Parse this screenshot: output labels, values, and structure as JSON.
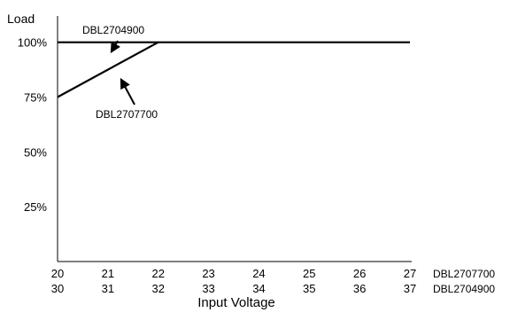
{
  "chart_data": {
    "type": "line",
    "ylabel": "Load",
    "xlabel": "Input Voltage",
    "y_ticks": [
      {
        "value": 100,
        "label": "100%"
      },
      {
        "value": 75,
        "label": "75%"
      },
      {
        "value": 50,
        "label": "50%"
      },
      {
        "value": 25,
        "label": "25%"
      }
    ],
    "ylim": [
      0,
      112
    ],
    "xlim": [
      20,
      27
    ],
    "x_tick_rows": [
      {
        "name": "DBL2707700",
        "labels": [
          "20",
          "21",
          "22",
          "23",
          "24",
          "25",
          "26",
          "27"
        ]
      },
      {
        "name": "DBL2704900",
        "labels": [
          "30",
          "31",
          "32",
          "33",
          "34",
          "35",
          "36",
          "37"
        ]
      }
    ],
    "series": [
      {
        "name": "DBL2704900",
        "points": [
          [
            20,
            100
          ],
          [
            27,
            100
          ]
        ]
      },
      {
        "name": "DBL2707700",
        "points": [
          [
            20,
            75
          ],
          [
            22,
            100
          ]
        ]
      }
    ],
    "annotations": [
      {
        "text": "DBL2704900",
        "target_series": "DBL2704900"
      },
      {
        "text": "DBL2707700",
        "target_series": "DBL2707700"
      }
    ],
    "grid": false,
    "colors": {
      "line": "#000000",
      "axis": "#000000"
    }
  }
}
